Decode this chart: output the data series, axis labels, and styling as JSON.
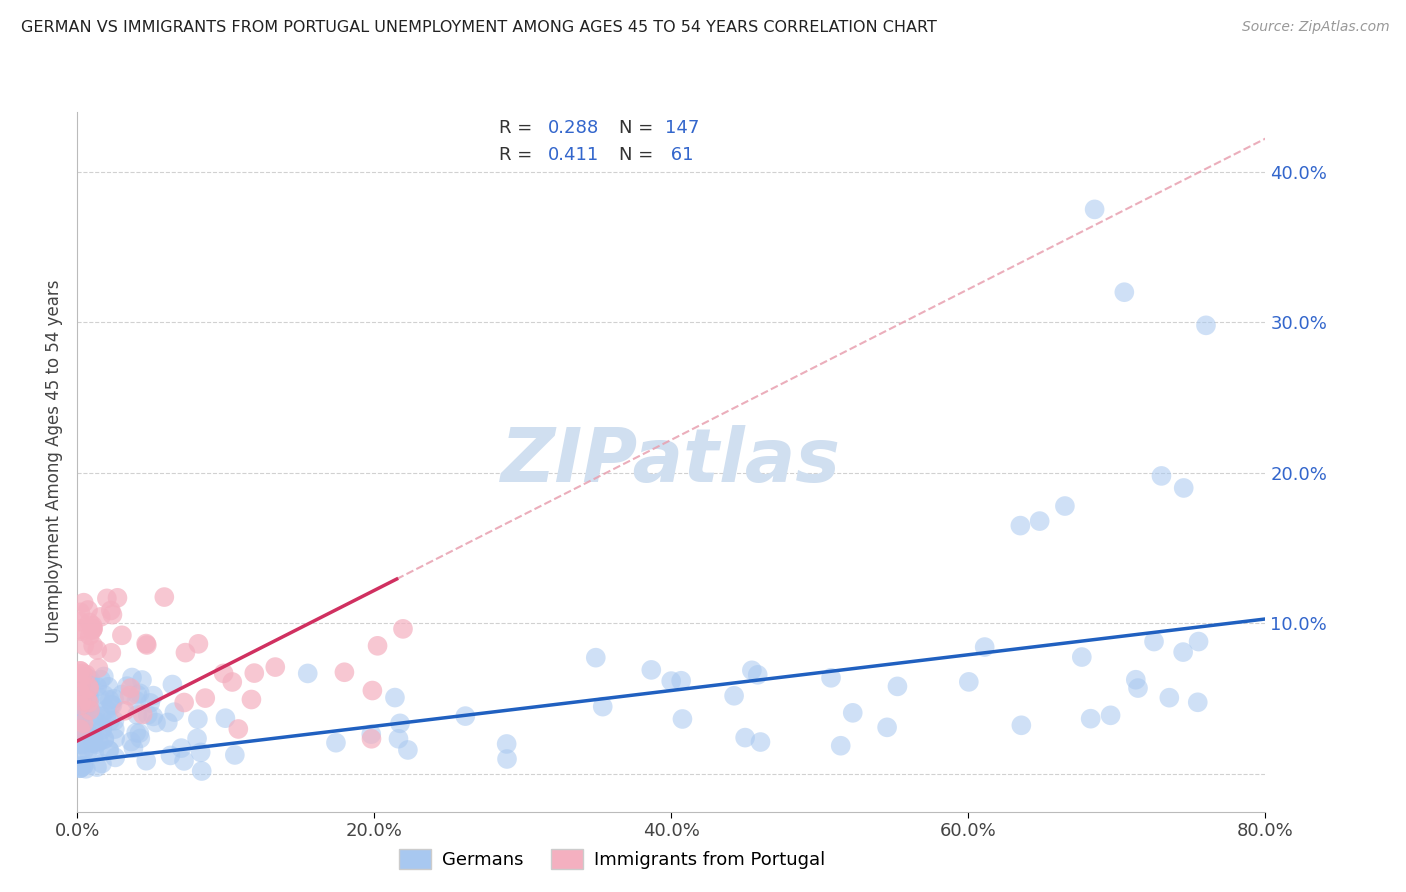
{
  "title": "GERMAN VS IMMIGRANTS FROM PORTUGAL UNEMPLOYMENT AMONG AGES 45 TO 54 YEARS CORRELATION CHART",
  "source": "Source: ZipAtlas.com",
  "ylabel": "Unemployment Among Ages 45 to 54 years",
  "xlim": [
    0.0,
    0.8
  ],
  "ylim": [
    -0.025,
    0.44
  ],
  "yticks": [
    0.0,
    0.1,
    0.2,
    0.3,
    0.4
  ],
  "ytick_labels": [
    "",
    "10.0%",
    "20.0%",
    "30.0%",
    "40.0%"
  ],
  "xticks": [
    0.0,
    0.2,
    0.4,
    0.6,
    0.8
  ],
  "xtick_labels": [
    "0.0%",
    "20.0%",
    "40.0%",
    "60.0%",
    "80.0%"
  ],
  "german_R": 0.288,
  "german_N": 147,
  "portugal_R": 0.411,
  "portugal_N": 61,
  "german_color": "#a8c8f0",
  "portugal_color": "#f4b0c0",
  "german_line_color": "#2060c0",
  "portugal_line_color": "#d03060",
  "portugal_line_dashed_color": "#e8a0b0",
  "watermark_color": "#d0dff0",
  "grid_color": "#cccccc",
  "legend_color": "#3366cc",
  "legend_N_color": "#cc3366"
}
